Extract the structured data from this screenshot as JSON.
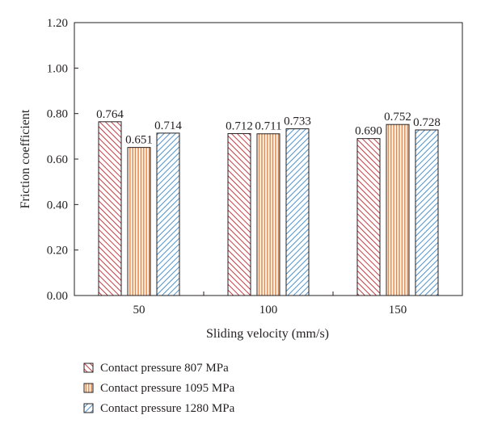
{
  "chart_data": {
    "type": "bar",
    "title": "",
    "xlabel": "Sliding velocity (mm/s)",
    "ylabel": "Friction coefficient",
    "categories": [
      "50",
      "100",
      "150"
    ],
    "ylim": [
      0,
      1.2
    ],
    "yticks": [
      "0.00",
      "0.20",
      "0.40",
      "0.60",
      "0.80",
      "1.00",
      "1.20"
    ],
    "grid": false,
    "legend_position": "bottom",
    "series": [
      {
        "name": "Contact pressure 807 MPa",
        "values": [
          0.764,
          0.712,
          0.69
        ],
        "labels": [
          "0.764",
          "0.712",
          "0.690"
        ],
        "color": "#c0272d",
        "hatch": "backward-diagonal"
      },
      {
        "name": "Contact pressure 1095 MPa",
        "values": [
          0.651,
          0.711,
          0.752
        ],
        "labels": [
          "0.651",
          "0.711",
          "0.752"
        ],
        "color": "#e8823a",
        "hatch": "vertical"
      },
      {
        "name": "Contact pressure 1280 MPa",
        "values": [
          0.714,
          0.733,
          0.728
        ],
        "labels": [
          "0.714",
          "0.733",
          "0.728"
        ],
        "color": "#3a86c8",
        "hatch": "forward-diagonal"
      }
    ]
  }
}
